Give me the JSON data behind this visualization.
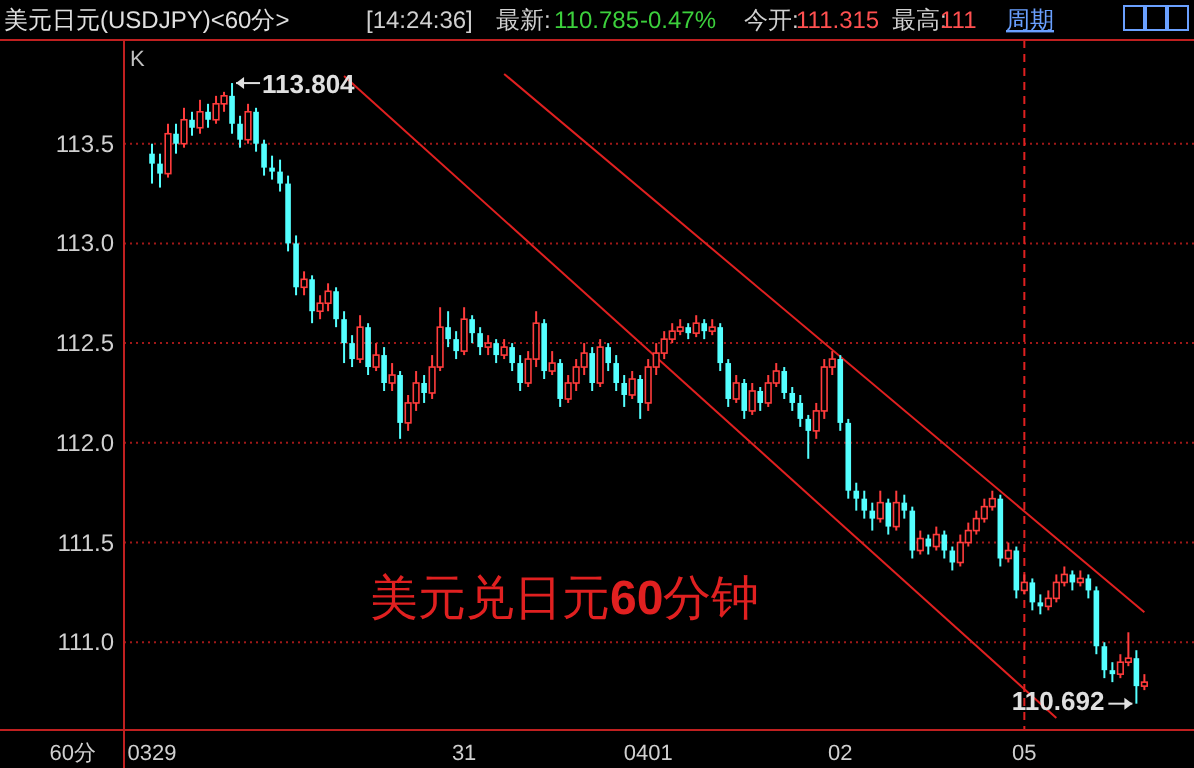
{
  "chart_data": {
    "type": "candlestick",
    "title": "美元日元(USDJPY)<60分>",
    "xlabel": "60分",
    "annotations": [
      "K",
      "美元兑日元**60**分钟",
      "[14:24:36]",
      "最新:",
      "110.785",
      "-0.47%",
      "今开:",
      "111.315",
      "最高:",
      "111",
      "周期",
      "113.804",
      "110.692"
    ],
    "categories": [
      "0329",
      null,
      null,
      null,
      null,
      null,
      null,
      null,
      null,
      null,
      null,
      null,
      null,
      null,
      null,
      null,
      null,
      null,
      null,
      null,
      null,
      null,
      null,
      null,
      null,
      null,
      null,
      null,
      null,
      null,
      null,
      null,
      null,
      null,
      null,
      null,
      null,
      null,
      null,
      "31",
      null,
      null,
      null,
      null,
      null,
      null,
      null,
      null,
      null,
      null,
      null,
      null,
      null,
      null,
      null,
      null,
      null,
      null,
      null,
      null,
      null,
      null,
      "0401",
      null,
      null,
      null,
      null,
      null,
      null,
      null,
      null,
      null,
      null,
      null,
      null,
      null,
      null,
      null,
      null,
      null,
      null,
      null,
      null,
      null,
      null,
      null,
      "02",
      null,
      null,
      null,
      null,
      null,
      null,
      null,
      null,
      null,
      null,
      null,
      null,
      null,
      null,
      null,
      null,
      null,
      null,
      null,
      null,
      null,
      null,
      "05",
      null,
      null,
      null,
      null,
      null,
      null,
      null,
      null,
      null,
      null,
      null,
      null,
      null,
      null,
      null
    ],
    "ohlc": [
      [
        113.45,
        113.5,
        113.3,
        113.4
      ],
      [
        113.4,
        113.45,
        113.28,
        113.35
      ],
      [
        113.35,
        113.6,
        113.33,
        113.55
      ],
      [
        113.55,
        113.6,
        113.45,
        113.5
      ],
      [
        113.5,
        113.68,
        113.48,
        113.62
      ],
      [
        113.62,
        113.66,
        113.54,
        113.58
      ],
      [
        113.58,
        113.72,
        113.55,
        113.66
      ],
      [
        113.66,
        113.7,
        113.58,
        113.62
      ],
      [
        113.62,
        113.74,
        113.6,
        113.7
      ],
      [
        113.7,
        113.76,
        113.66,
        113.74
      ],
      [
        113.74,
        113.804,
        113.55,
        113.6
      ],
      [
        113.6,
        113.64,
        113.48,
        113.52
      ],
      [
        113.52,
        113.7,
        113.5,
        113.66
      ],
      [
        113.66,
        113.68,
        113.46,
        113.5
      ],
      [
        113.5,
        113.52,
        113.34,
        113.38
      ],
      [
        113.38,
        113.44,
        113.32,
        113.36
      ],
      [
        113.36,
        113.42,
        113.26,
        113.3
      ],
      [
        113.3,
        113.34,
        112.96,
        113.0
      ],
      [
        113.0,
        113.04,
        112.74,
        112.78
      ],
      [
        112.78,
        112.86,
        112.74,
        112.82
      ],
      [
        112.82,
        112.84,
        112.6,
        112.66
      ],
      [
        112.66,
        112.74,
        112.62,
        112.7
      ],
      [
        112.7,
        112.8,
        112.66,
        112.76
      ],
      [
        112.76,
        112.78,
        112.58,
        112.62
      ],
      [
        112.62,
        112.66,
        112.4,
        112.5
      ],
      [
        112.5,
        112.54,
        112.38,
        112.42
      ],
      [
        112.42,
        112.64,
        112.4,
        112.58
      ],
      [
        112.58,
        112.6,
        112.34,
        112.38
      ],
      [
        112.38,
        112.5,
        112.36,
        112.44
      ],
      [
        112.44,
        112.48,
        112.26,
        112.3
      ],
      [
        112.3,
        112.4,
        112.26,
        112.34
      ],
      [
        112.34,
        112.36,
        112.02,
        112.1
      ],
      [
        112.1,
        112.24,
        112.06,
        112.2
      ],
      [
        112.2,
        112.36,
        112.16,
        112.3
      ],
      [
        112.3,
        112.34,
        112.2,
        112.25
      ],
      [
        112.25,
        112.44,
        112.22,
        112.38
      ],
      [
        112.38,
        112.68,
        112.36,
        112.58
      ],
      [
        112.58,
        112.66,
        112.48,
        112.52
      ],
      [
        112.52,
        112.56,
        112.42,
        112.46
      ],
      [
        112.46,
        112.68,
        112.44,
        112.62
      ],
      [
        112.62,
        112.64,
        112.5,
        112.55
      ],
      [
        112.55,
        112.58,
        112.44,
        112.48
      ],
      [
        112.48,
        112.54,
        112.44,
        112.5
      ],
      [
        112.5,
        112.52,
        112.4,
        112.44
      ],
      [
        112.44,
        112.52,
        112.42,
        112.48
      ],
      [
        112.48,
        112.5,
        112.36,
        112.4
      ],
      [
        112.4,
        112.44,
        112.26,
        112.3
      ],
      [
        112.3,
        112.46,
        112.28,
        112.42
      ],
      [
        112.42,
        112.66,
        112.38,
        112.6
      ],
      [
        112.6,
        112.62,
        112.32,
        112.36
      ],
      [
        112.36,
        112.46,
        112.34,
        112.4
      ],
      [
        112.4,
        112.42,
        112.18,
        112.22
      ],
      [
        112.22,
        112.34,
        112.2,
        112.3
      ],
      [
        112.3,
        112.42,
        112.26,
        112.38
      ],
      [
        112.38,
        112.5,
        112.34,
        112.45
      ],
      [
        112.45,
        112.48,
        112.26,
        112.3
      ],
      [
        112.3,
        112.52,
        112.28,
        112.48
      ],
      [
        112.48,
        112.5,
        112.36,
        112.4
      ],
      [
        112.4,
        112.44,
        112.26,
        112.3
      ],
      [
        112.3,
        112.34,
        112.18,
        112.24
      ],
      [
        112.24,
        112.36,
        112.22,
        112.32
      ],
      [
        112.32,
        112.34,
        112.12,
        112.2
      ],
      [
        112.2,
        112.42,
        112.16,
        112.38
      ],
      [
        112.38,
        112.5,
        112.34,
        112.45
      ],
      [
        112.45,
        112.56,
        112.42,
        112.52
      ],
      [
        112.52,
        112.6,
        112.5,
        112.56
      ],
      [
        112.56,
        112.62,
        112.54,
        112.58
      ],
      [
        112.58,
        112.6,
        112.52,
        112.55
      ],
      [
        112.55,
        112.64,
        112.53,
        112.6
      ],
      [
        112.6,
        112.62,
        112.52,
        112.56
      ],
      [
        112.56,
        112.62,
        112.54,
        112.58
      ],
      [
        112.58,
        112.6,
        112.36,
        112.4
      ],
      [
        112.4,
        112.42,
        112.18,
        112.22
      ],
      [
        112.22,
        112.34,
        112.2,
        112.3
      ],
      [
        112.3,
        112.32,
        112.12,
        112.16
      ],
      [
        112.16,
        112.3,
        112.14,
        112.26
      ],
      [
        112.26,
        112.28,
        112.16,
        112.2
      ],
      [
        112.2,
        112.34,
        112.18,
        112.3
      ],
      [
        112.3,
        112.4,
        112.28,
        112.36
      ],
      [
        112.36,
        112.38,
        112.22,
        112.25
      ],
      [
        112.25,
        112.28,
        112.16,
        112.2
      ],
      [
        112.2,
        112.24,
        112.08,
        112.12
      ],
      [
        112.12,
        112.14,
        111.92,
        112.06
      ],
      [
        112.06,
        112.2,
        112.02,
        112.16
      ],
      [
        112.16,
        112.42,
        112.12,
        112.38
      ],
      [
        112.38,
        112.46,
        112.34,
        112.42
      ],
      [
        112.42,
        112.44,
        112.06,
        112.1
      ],
      [
        112.1,
        112.12,
        111.72,
        111.76
      ],
      [
        111.76,
        111.8,
        111.66,
        111.72
      ],
      [
        111.72,
        111.76,
        111.62,
        111.66
      ],
      [
        111.66,
        111.7,
        111.56,
        111.62
      ],
      [
        111.62,
        111.76,
        111.6,
        111.7
      ],
      [
        111.7,
        111.72,
        111.54,
        111.58
      ],
      [
        111.58,
        111.76,
        111.56,
        111.7
      ],
      [
        111.7,
        111.74,
        111.62,
        111.66
      ],
      [
        111.66,
        111.68,
        111.42,
        111.46
      ],
      [
        111.46,
        111.56,
        111.44,
        111.52
      ],
      [
        111.52,
        111.54,
        111.44,
        111.48
      ],
      [
        111.48,
        111.58,
        111.46,
        111.54
      ],
      [
        111.54,
        111.56,
        111.42,
        111.46
      ],
      [
        111.46,
        111.48,
        111.36,
        111.4
      ],
      [
        111.4,
        111.54,
        111.38,
        111.5
      ],
      [
        111.5,
        111.6,
        111.48,
        111.56
      ],
      [
        111.56,
        111.66,
        111.54,
        111.62
      ],
      [
        111.62,
        111.72,
        111.6,
        111.68
      ],
      [
        111.68,
        111.76,
        111.66,
        111.72
      ],
      [
        111.72,
        111.74,
        111.38,
        111.42
      ],
      [
        111.42,
        111.5,
        111.4,
        111.46
      ],
      [
        111.46,
        111.48,
        111.22,
        111.26
      ],
      [
        111.26,
        111.34,
        111.24,
        111.3
      ],
      [
        111.3,
        111.32,
        111.16,
        111.2
      ],
      [
        111.2,
        111.24,
        111.14,
        111.18
      ],
      [
        111.18,
        111.26,
        111.16,
        111.22
      ],
      [
        111.22,
        111.34,
        111.2,
        111.3
      ],
      [
        111.3,
        111.38,
        111.28,
        111.34
      ],
      [
        111.34,
        111.36,
        111.26,
        111.3
      ],
      [
        111.3,
        111.36,
        111.28,
        111.32
      ],
      [
        111.32,
        111.34,
        111.22,
        111.26
      ],
      [
        111.26,
        111.28,
        110.94,
        110.98
      ],
      [
        110.98,
        111.0,
        110.82,
        110.86
      ],
      [
        110.86,
        110.9,
        110.8,
        110.84
      ],
      [
        110.84,
        110.94,
        110.82,
        110.9
      ],
      [
        110.9,
        111.05,
        110.88,
        110.92
      ],
      [
        110.92,
        110.96,
        110.692,
        110.78
      ],
      [
        110.78,
        110.84,
        110.76,
        110.8
      ]
    ],
    "series": [
      {
        "type": "line",
        "values": [
          null,
          null,
          null,
          null,
          null,
          null,
          null,
          null,
          null,
          null,
          null,
          null,
          null,
          null,
          null,
          null,
          null,
          null,
          null,
          null,
          null,
          null,
          null,
          null,
          null,
          null,
          null,
          null,
          null,
          null,
          null,
          null,
          null,
          null,
          null,
          null,
          null,
          null,
          null,
          null,
          null,
          null,
          null,
          null,
          113.85,
          null,
          null,
          null,
          null,
          null,
          null,
          null,
          null,
          null,
          null,
          null,
          null,
          null,
          null,
          null,
          null,
          null,
          null,
          null,
          null,
          null,
          null,
          null,
          null,
          null,
          null,
          null,
          null,
          null,
          null,
          null,
          null,
          null,
          null,
          null,
          null,
          null,
          null,
          null,
          null,
          null,
          null,
          null,
          null,
          null,
          null,
          null,
          null,
          null,
          null,
          null,
          null,
          null,
          null,
          null,
          null,
          null,
          null,
          null,
          null,
          null,
          null,
          null,
          null,
          null,
          null,
          null,
          null,
          null,
          null,
          null,
          null,
          null,
          null,
          null,
          null,
          null,
          null,
          null,
          111.15
        ],
        "color": "#e02020"
      },
      {
        "type": "line",
        "values": [
          null,
          null,
          null,
          null,
          null,
          null,
          null,
          null,
          null,
          null,
          null,
          null,
          null,
          null,
          null,
          null,
          null,
          null,
          null,
          null,
          null,
          null,
          null,
          null,
          113.84,
          null,
          null,
          null,
          null,
          null,
          null,
          null,
          null,
          null,
          null,
          null,
          null,
          null,
          null,
          null,
          null,
          null,
          null,
          null,
          null,
          null,
          null,
          null,
          null,
          null,
          null,
          null,
          null,
          null,
          null,
          null,
          null,
          null,
          null,
          null,
          null,
          null,
          null,
          null,
          null,
          null,
          null,
          null,
          null,
          null,
          null,
          null,
          null,
          null,
          null,
          null,
          null,
          null,
          null,
          null,
          null,
          null,
          null,
          null,
          null,
          null,
          null,
          null,
          null,
          null,
          null,
          null,
          null,
          null,
          null,
          null,
          null,
          null,
          null,
          null,
          null,
          null,
          null,
          null,
          null,
          null,
          null,
          null,
          null,
          null,
          null,
          null,
          null,
          110.62,
          null,
          null,
          null,
          null,
          null,
          null,
          null,
          null,
          null,
          null,
          null
        ],
        "color": "#e02020"
      }
    ],
    "ylim": [
      110.56,
      114.02
    ],
    "yticks": [
      113.5,
      {
        "value": 113,
        "label": "113.0"
      },
      112.5,
      {
        "value": 112,
        "label": "112.0"
      },
      111.5,
      {
        "value": 111,
        "label": "111.0"
      }
    ],
    "grid": "y",
    "ref_lines": [
      {
        "axis": "x",
        "value": "05",
        "color": "#e02020",
        "line_style": "dashed"
      }
    ]
  }
}
